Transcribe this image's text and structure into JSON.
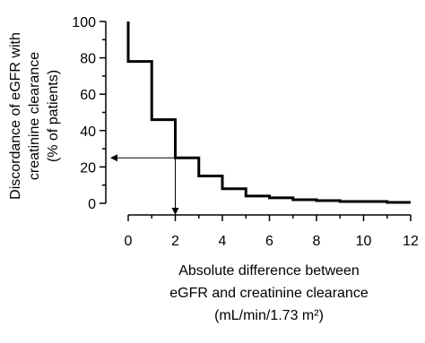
{
  "chart_data": {
    "type": "step",
    "x": [
      0,
      0,
      1,
      2,
      3,
      4,
      5,
      6,
      7,
      8,
      9,
      10,
      11,
      12
    ],
    "values": [
      100,
      78,
      46,
      25,
      15,
      8,
      4,
      3,
      2,
      1.5,
      1,
      1,
      0.5,
      0.5
    ],
    "color": "#000000",
    "xlim": [
      0,
      12
    ],
    "xticks": [
      0,
      2,
      4,
      6,
      8,
      10,
      12
    ],
    "xminor": [
      1,
      3,
      5,
      7,
      9,
      11
    ],
    "ylim": [
      0,
      100
    ],
    "yticks": [
      0,
      20,
      40,
      60,
      80,
      100
    ],
    "yminor": [
      10,
      30,
      50,
      70,
      90
    ],
    "ylabel": [
      "Discordance of eGFR with",
      "creatinine clearance",
      "(% of patients)"
    ],
    "xlabel": [
      "Absolute difference between",
      "eGFR and creatinine clearance",
      "(mL/min/1.73 m²)"
    ],
    "reference_point": {
      "x": 2,
      "y": 25
    }
  }
}
